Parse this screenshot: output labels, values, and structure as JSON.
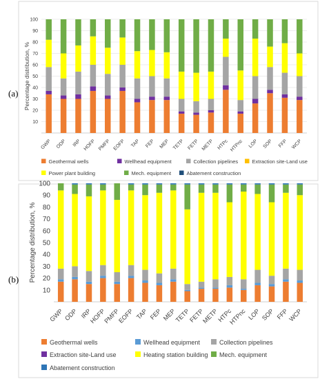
{
  "chart_data": [
    {
      "type": "bar",
      "stacked": true,
      "panel_label": "(a)",
      "ylabel": "Percentage distribution, %",
      "ylim": [
        0,
        100
      ],
      "yticks": [
        10,
        20,
        30,
        40,
        50,
        60,
        70,
        80,
        90,
        100
      ],
      "grid": true,
      "legend_position": "bottom",
      "categories": [
        "GWP",
        "ODP",
        "IRP",
        "HOFP",
        "PMFP",
        "EOFP",
        "TAP",
        "FEP",
        "MEP",
        "TETP",
        "FETP",
        "METP",
        "HTPc",
        "HTPnc",
        "LOP",
        "SOP",
        "FFP",
        "WCP"
      ],
      "series": [
        {
          "name": "Geothermal wells",
          "color": "#ed7d31",
          "values": [
            34,
            30,
            30,
            37,
            30,
            37,
            27,
            29,
            29,
            17,
            16,
            18,
            38,
            17,
            26,
            35,
            31,
            29
          ]
        },
        {
          "name": "Wellhead equipment",
          "color": "#7030a0",
          "values": [
            3,
            3,
            4,
            4,
            3,
            3,
            3,
            3,
            3,
            2,
            2,
            2,
            4,
            2,
            4,
            3,
            3,
            3
          ]
        },
        {
          "name": "Collection pipelines",
          "color": "#a5a5a5",
          "values": [
            21,
            15,
            20,
            19,
            19,
            20,
            18,
            18,
            16,
            11,
            10,
            10,
            25,
            10,
            20,
            20,
            19,
            18
          ]
        },
        {
          "name": "Extraction site-Land use",
          "color": "#ffc000",
          "values": [
            0,
            0,
            0,
            0,
            0,
            0,
            0,
            0,
            0,
            0,
            0,
            0,
            0,
            0,
            0,
            0,
            0,
            0
          ]
        },
        {
          "name": "Power plant building",
          "color": "#ffff00",
          "values": [
            24,
            22,
            23,
            25,
            23,
            24,
            24,
            23,
            23,
            24,
            25,
            24,
            16,
            26,
            33,
            18,
            26,
            20
          ]
        },
        {
          "name": "Mech. equipment",
          "color": "#70ad47",
          "values": [
            18,
            30,
            23,
            15,
            25,
            16,
            28,
            27,
            29,
            46,
            47,
            46,
            17,
            45,
            17,
            24,
            21,
            30
          ]
        },
        {
          "name": "Abatement construction",
          "color": "#1f4e79",
          "values": [
            0,
            0,
            0,
            0,
            0,
            0,
            0,
            0,
            0,
            0,
            0,
            0,
            0,
            0,
            0,
            0,
            0,
            0
          ]
        }
      ]
    },
    {
      "type": "bar",
      "stacked": true,
      "panel_label": "(b)",
      "ylabel": "Percentage distribution, %",
      "ylim": [
        0,
        100
      ],
      "yticks": [
        10,
        20,
        30,
        40,
        50,
        60,
        70,
        80,
        90,
        100
      ],
      "grid": false,
      "legend_position": "bottom",
      "categories": [
        "GWP",
        "ODP",
        "IRP",
        "HOFP",
        "PMFP",
        "EOFP",
        "TAP",
        "FEP",
        "MEP",
        "TETP",
        "FETP",
        "METP",
        "HTPc",
        "HTPnc",
        "LOP",
        "SOP",
        "FFP",
        "WCP"
      ],
      "series": [
        {
          "name": "Geothermal wells",
          "color": "#ed7d31",
          "values": [
            17,
            19,
            15,
            20,
            15,
            20,
            16,
            14,
            17,
            9,
            11,
            11,
            12,
            10,
            14,
            13,
            17,
            16
          ]
        },
        {
          "name": "Wellhead equipment",
          "color": "#5b9bd5",
          "values": [
            2,
            2,
            2,
            2,
            2,
            2,
            2,
            2,
            2,
            1,
            1,
            1,
            2,
            1,
            2,
            2,
            2,
            2
          ]
        },
        {
          "name": "Collection pipelines",
          "color": "#a5a5a5",
          "values": [
            9,
            9,
            9,
            9,
            8,
            9,
            9,
            8,
            9,
            5,
            5,
            7,
            7,
            8,
            11,
            7,
            9,
            9
          ]
        },
        {
          "name": "Extraction site-Land use",
          "color": "#7030a0",
          "values": [
            0,
            0,
            0,
            0,
            0,
            0,
            0,
            0,
            0,
            0,
            0,
            0,
            0,
            0,
            0,
            0,
            0,
            0
          ]
        },
        {
          "name": "Heating station building",
          "color": "#ffff00",
          "values": [
            66,
            61,
            63,
            63,
            61,
            63,
            63,
            68,
            66,
            63,
            75,
            73,
            63,
            74,
            64,
            62,
            64,
            63
          ]
        },
        {
          "name": "Mech. equipment",
          "color": "#70ad47",
          "values": [
            6,
            8,
            10,
            5,
            14,
            5,
            9,
            7,
            5,
            21,
            7,
            7,
            15,
            6,
            8,
            15,
            7,
            9
          ]
        },
        {
          "name": "Abatement construction",
          "color": "#2e75b6",
          "values": [
            0,
            1,
            1,
            1,
            0,
            1,
            1,
            1,
            1,
            1,
            1,
            1,
            1,
            1,
            1,
            1,
            1,
            1
          ]
        }
      ]
    }
  ]
}
